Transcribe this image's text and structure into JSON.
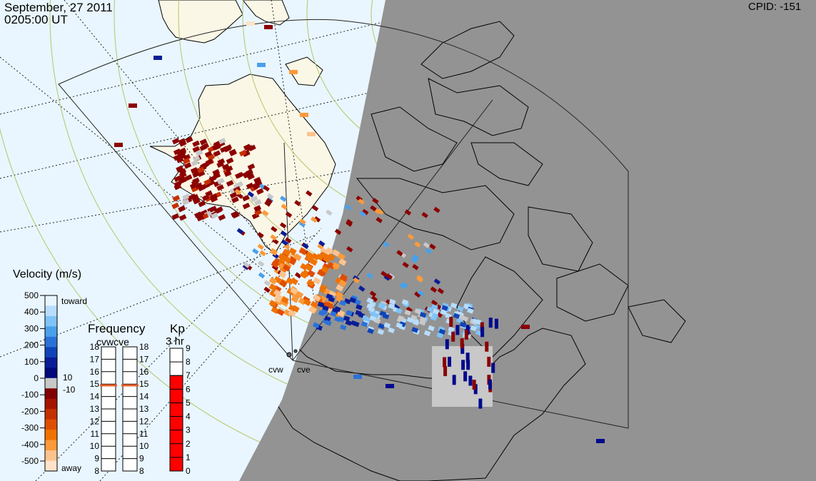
{
  "header": {
    "date": "September, 27 2011",
    "time": "0205:00 UT",
    "cpid": "CPID:  -151"
  },
  "colors": {
    "background_day": "#e9f6ff",
    "night_shade": "#939393",
    "land": "#fbf7e6",
    "coast": "#000000",
    "grid_lat": "#b5c56a",
    "ground_scatter": "#c8c8c8",
    "away_dark": "#8b0000",
    "toward_dark": "#000a8c",
    "kp_bar": "#ff0000",
    "freq_marker": "#e8602c"
  },
  "velocity_scale": {
    "title": "Velocity (m/s)",
    "labels": [
      "500",
      "400",
      "300",
      "200",
      "100",
      "0",
      "-100",
      "-200",
      "-300",
      "-400",
      "-500"
    ],
    "toward_label": "toward",
    "away_label": "away",
    "gs_upper": "10",
    "gs_lower": "-10",
    "colors": [
      "#e8f5ff",
      "#b7ddff",
      "#7fc3f7",
      "#4aa0ea",
      "#2a72d8",
      "#0f44b8",
      "#0a1c96",
      "#00087a",
      "#c8c8c8",
      "#800000",
      "#a31300",
      "#c43000",
      "#df4d00",
      "#f07200",
      "#fb9a3a",
      "#fdc38e",
      "#ffe2c9"
    ]
  },
  "frequency": {
    "title": "Frequency",
    "subtitle": "cvwcve",
    "left_labels": [
      "18",
      "17",
      "16",
      "15",
      "14",
      "13",
      "12",
      "11",
      "10",
      "9",
      "8"
    ],
    "right_labels": [
      "18",
      "17",
      "16",
      "15",
      "14",
      "13",
      "12",
      "11",
      "10",
      "9",
      "8"
    ],
    "cvw_mhz": 14.9,
    "cve_mhz": 14.9
  },
  "kp": {
    "title": "Kp",
    "subtitle": "3 hr",
    "labels": [
      "9",
      "8",
      "7",
      "6",
      "5",
      "4",
      "3",
      "2",
      "1",
      "0"
    ],
    "value": 7
  },
  "radars": [
    {
      "code": "cvw",
      "label": "cvw"
    },
    {
      "code": "cve",
      "label": "cve"
    }
  ]
}
